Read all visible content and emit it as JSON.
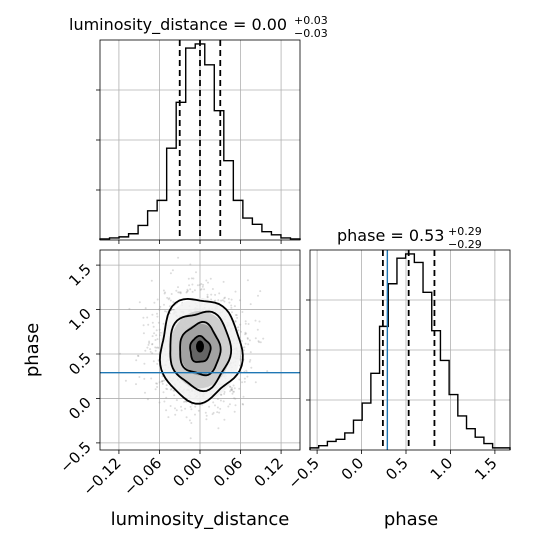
{
  "chart_data": {
    "type": "corner",
    "parameters": [
      "luminosity_distance",
      "phase"
    ],
    "colors": {
      "hist": "#000000",
      "truth": "#1f77b4",
      "grid": "#b0b0b0",
      "points": "#9a9a9a"
    },
    "luminosity_distance": {
      "title": {
        "text": "luminosity_distance = 0.00",
        "plus": "+0.03",
        "minus": "−0.03"
      },
      "median": 0.0,
      "quantiles": [
        -0.03,
        0.0,
        0.03
      ],
      "range": [
        -0.148,
        0.148
      ],
      "ticks": [
        -0.12,
        -0.06,
        0.0,
        0.06,
        0.12
      ],
      "tick_labels": [
        "−0.12",
        "−0.06",
        "0.00",
        "0.06",
        "0.12"
      ],
      "hist_edges_range": [
        -0.148,
        0.148
      ],
      "hist_counts": [
        1,
        2,
        3,
        6,
        14,
        28,
        38,
        88,
        132,
        184,
        188,
        168,
        124,
        76,
        38,
        21,
        15,
        8,
        5,
        2,
        1
      ]
    },
    "phase": {
      "title": {
        "text": "phase = 0.53",
        "plus": "+0.29",
        "minus": "−0.29"
      },
      "median": 0.53,
      "quantiles": [
        0.24,
        0.53,
        0.82
      ],
      "truth": 0.29,
      "range": [
        -0.58,
        1.67
      ],
      "ticks": [
        -0.5,
        0.0,
        0.5,
        1.0,
        1.5
      ],
      "tick_labels": [
        "−0.5",
        "0.0",
        "0.5",
        "1.0",
        "1.5"
      ],
      "hist_edges_range": [
        -0.58,
        1.67
      ],
      "hist_counts": [
        1,
        2,
        4,
        5,
        8,
        14,
        22,
        36,
        58,
        78,
        90,
        92,
        88,
        74,
        56,
        42,
        26,
        16,
        10,
        6,
        3,
        1,
        1
      ]
    },
    "joint": {
      "x_param": "luminosity_distance",
      "y_param": "phase",
      "y_ticks": [
        -0.5,
        0.0,
        0.5,
        1.0,
        1.5
      ],
      "y_tick_labels": [
        "−0.5",
        "0.0",
        "0.5",
        "1.0",
        "1.5"
      ],
      "center": [
        0.0,
        0.55
      ],
      "sigma": [
        0.03,
        0.29
      ],
      "contour_levels_sigma": [
        0.5,
        1.0,
        1.5,
        2.0
      ],
      "truth_line_y": 0.29
    },
    "xlabel_left": "luminosity_distance",
    "xlabel_right": "phase",
    "ylabel": "phase",
    "grid": true
  }
}
